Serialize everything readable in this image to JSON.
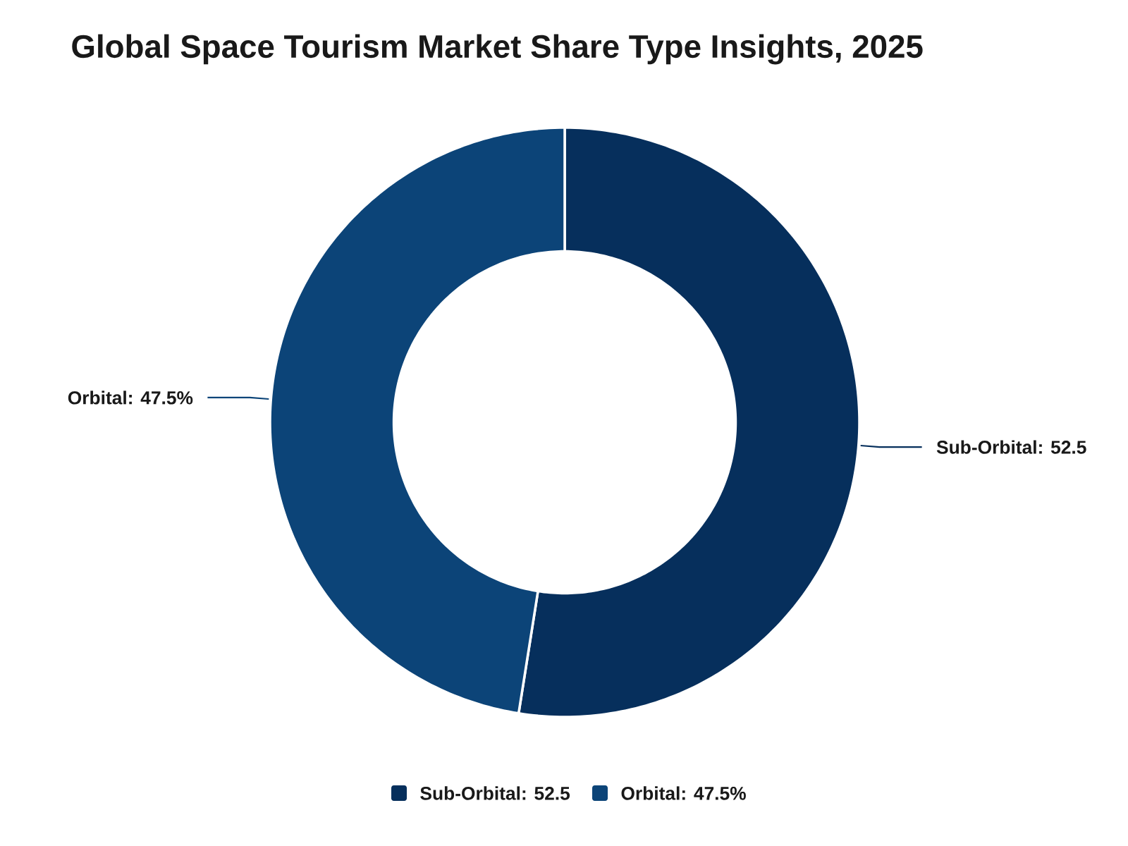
{
  "chart_data": {
    "type": "donut",
    "title": "Global Space Tourism Market Share Type Insights, 2025",
    "categories": [
      "Sub-Orbital: 52.5",
      "Orbital: 47.5%"
    ],
    "values": [
      52.5,
      47.5
    ],
    "colors": [
      "#062f5c",
      "#0c4478"
    ],
    "legend": "bottom"
  }
}
